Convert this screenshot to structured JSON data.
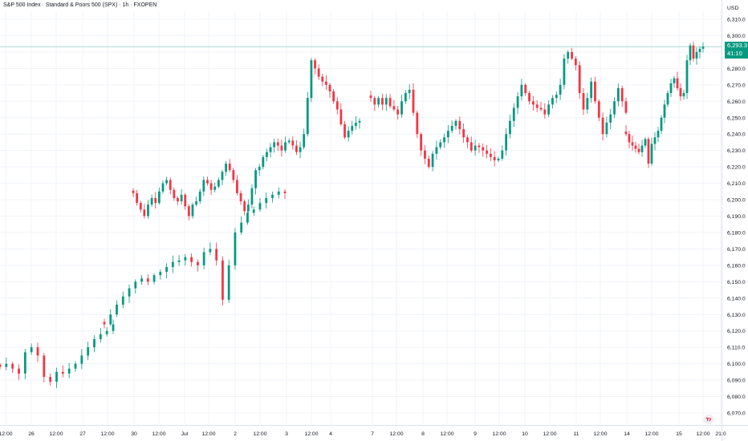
{
  "header": {
    "title": "S&P 500 Index · Standard & Poors 500 (SPX) · 1h · FXOPEN"
  },
  "price_axis": {
    "currency": "USD",
    "ticks": [
      "6,310.0",
      "6,300.0",
      "6,290.0",
      "6,280.0",
      "6,270.0",
      "6,260.0",
      "6,250.0",
      "6,240.0",
      "6,230.0",
      "6,220.0",
      "6,210.0",
      "6,200.0",
      "6,190.0",
      "6,180.0",
      "6,170.0",
      "6,160.0",
      "6,150.0",
      "6,140.0",
      "6,130.0",
      "6,120.0",
      "6,110.0",
      "6,100.0",
      "6,090.0",
      "6,080.0",
      "6,070.0"
    ]
  },
  "last_price": {
    "price": "6,293.3",
    "countdown": "41:10",
    "color": "#089981"
  },
  "time_axis": {
    "ticks": [
      "12:00",
      "26",
      "12:00",
      "27",
      "12:00",
      "30",
      "12:00",
      "Jul",
      "12:00",
      "2",
      "12:00",
      "3",
      "12:00",
      "4",
      "7",
      "12:00",
      "8",
      "12:00",
      "9",
      "12:00",
      "10",
      "12:00",
      "11",
      "12:00",
      "14",
      "12:00",
      "15",
      "12:00",
      "21:0"
    ]
  },
  "colors": {
    "up": "#089981",
    "down": "#f23645",
    "grid": "#f0f3fa",
    "axis_text": "#131722"
  },
  "icons": {
    "logo": "tradingview-logo-icon"
  },
  "chart_data": {
    "type": "candlestick",
    "title": "S&P 500 Index · Standard & Poors 500 (SPX) · 1h · FXOPEN",
    "xlabel": "",
    "ylabel": "USD",
    "ylim": [
      6065,
      6315
    ],
    "grid": true,
    "last_value": 6293.3,
    "day_segments": [
      {
        "start": "12:00",
        "values": [
          6098,
          6100,
          6097,
          6094,
          6107,
          6110,
          6105,
          6092,
          6089,
          6095,
          6094,
          6097,
          6100,
          6105,
          6110,
          6115,
          6118,
          6120,
          6124
        ]
      },
      {
        "start": "27 12:00",
        "values": [
          6124,
          6130,
          6136,
          6141,
          6146,
          6150,
          6152,
          6150,
          6154,
          6156,
          6159,
          6162,
          6163,
          6165,
          6162,
          6160,
          6168,
          6170,
          6163,
          6139,
          6160,
          6180,
          6186,
          6192,
          6194,
          6198,
          6201,
          6203,
          6205,
          6204
        ]
      },
      {
        "start": "30 12:00",
        "values": [
          6204,
          6198,
          6194,
          6190,
          6197,
          6201,
          6198,
          6205,
          6210,
          6212,
          6206,
          6201,
          6199,
          6203,
          6196,
          6190,
          6197,
          6199,
          6205,
          6212,
          6210,
          6206,
          6208,
          6212,
          6217,
          6222,
          6218,
          6212,
          6204,
          6199,
          6193,
          6197,
          6207,
          6218,
          6220,
          6226,
          6229,
          6232,
          6235,
          6233,
          6230,
          6235,
          6236,
          6233,
          6229,
          6232,
          6240,
          6262,
          6285,
          6280,
          6275,
          6272,
          6270,
          6266,
          6260,
          6255,
          6246,
          6238,
          6242,
          6245,
          6247,
          6248
        ]
      },
      {
        "start": "7",
        "values": [
          6262,
          6258,
          6262,
          6258,
          6262,
          6257,
          6255,
          6252,
          6260,
          6265,
          6267,
          6253,
          6240,
          6230,
          6225,
          6220,
          6228,
          6232,
          6235,
          6238,
          6242,
          6245,
          6248,
          6243,
          6238,
          6235,
          6230,
          6233,
          6232,
          6230,
          6228,
          6226,
          6224,
          6225,
          6230,
          6240,
          6248,
          6256,
          6263,
          6270,
          6265,
          6260,
          6258,
          6256,
          6255,
          6252,
          6258,
          6262,
          6264,
          6270,
          6286,
          6290,
          6286,
          6282,
          6265,
          6255,
          6262,
          6272,
          6260,
          6250,
          6240,
          6247,
          6252,
          6260,
          6268,
          6260,
          6253
        ]
      },
      {
        "start": "14",
        "values": [
          6240,
          6235,
          6233,
          6231,
          6229,
          6233,
          6237,
          6222,
          6234,
          6238,
          6242,
          6250,
          6258,
          6265,
          6271,
          6274,
          6268,
          6263,
          6265,
          6285,
          6294,
          6286,
          6290,
          6292,
          6293.3
        ]
      }
    ]
  }
}
